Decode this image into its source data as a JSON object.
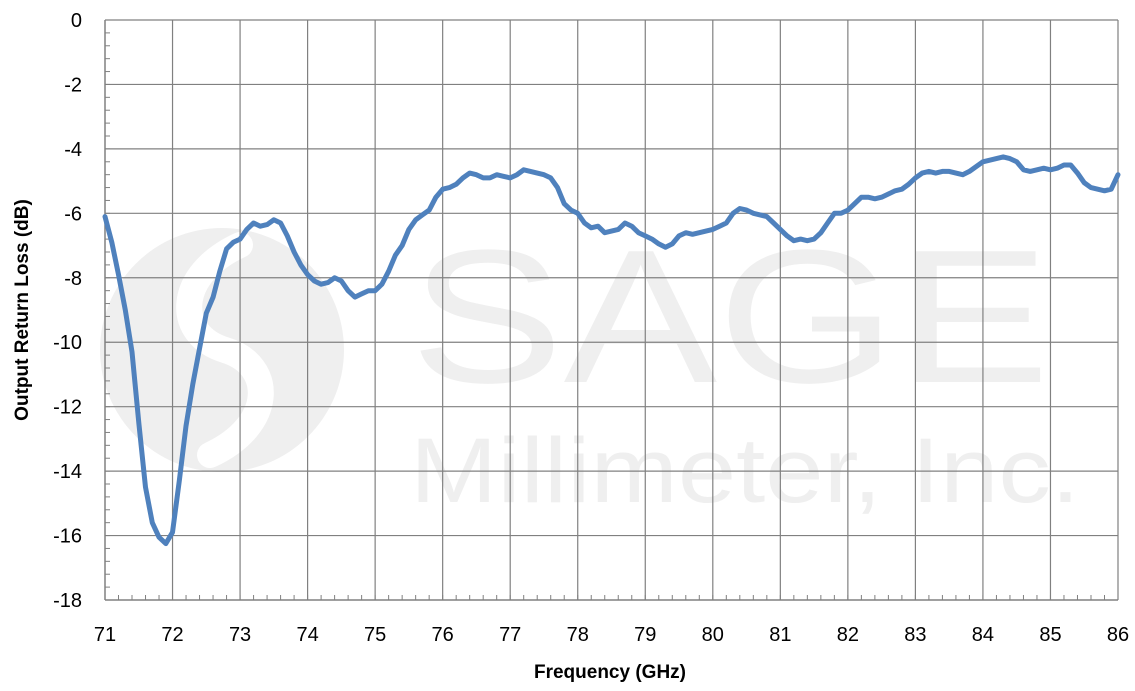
{
  "chart_data": {
    "type": "line",
    "title": "",
    "xlabel": "Frequency (GHz)",
    "ylabel": "Output Return Loss (dB)",
    "xlim": [
      71,
      86
    ],
    "ylim": [
      -18,
      0
    ],
    "x_ticks": [
      71,
      72,
      73,
      74,
      75,
      76,
      77,
      78,
      79,
      80,
      81,
      82,
      83,
      84,
      85,
      86
    ],
    "y_ticks": [
      0,
      -2,
      -4,
      -6,
      -8,
      -10,
      -12,
      -14,
      -16,
      -18
    ],
    "x_tick_labels": [
      "71",
      "72",
      "73",
      "74",
      "75",
      "76",
      "77",
      "78",
      "79",
      "80",
      "81",
      "82",
      "83",
      "84",
      "85",
      "86"
    ],
    "y_tick_labels": [
      "0",
      "-2",
      "-4",
      "-6",
      "-8",
      "-10",
      "-12",
      "-14",
      "-16",
      "-18"
    ],
    "grid": true,
    "legend": "none",
    "series_color": "#4f81bd",
    "grid_color": "#808080",
    "watermark": {
      "brand": "SAGE",
      "tagline": "Millimeter, Inc.",
      "color": "#efefef"
    },
    "series": [
      {
        "x": [
          71.0,
          71.1,
          71.2,
          71.3,
          71.4,
          71.5,
          71.6,
          71.7,
          71.8,
          71.9,
          72.0,
          72.1,
          72.2,
          72.3,
          72.4,
          72.5,
          72.6,
          72.7,
          72.8,
          72.9,
          73.0,
          73.1,
          73.2,
          73.3,
          73.4,
          73.5,
          73.6,
          73.7,
          73.8,
          73.9,
          74.0,
          74.1,
          74.2,
          74.3,
          74.4,
          74.5,
          74.6,
          74.7,
          74.8,
          74.9,
          75.0,
          75.1,
          75.2,
          75.3,
          75.4,
          75.5,
          75.6,
          75.7,
          75.8,
          75.9,
          76.0,
          76.1,
          76.2,
          76.3,
          76.4,
          76.5,
          76.6,
          76.7,
          76.8,
          76.9,
          77.0,
          77.1,
          77.2,
          77.3,
          77.4,
          77.5,
          77.6,
          77.7,
          77.8,
          77.9,
          78.0,
          78.1,
          78.2,
          78.3,
          78.4,
          78.5,
          78.6,
          78.7,
          78.8,
          78.9,
          79.0,
          79.1,
          79.2,
          79.3,
          79.4,
          79.5,
          79.6,
          79.7,
          79.8,
          79.9,
          80.0,
          80.1,
          80.2,
          80.3,
          80.4,
          80.5,
          80.6,
          80.7,
          80.8,
          80.9,
          81.0,
          81.1,
          81.2,
          81.3,
          81.4,
          81.5,
          81.6,
          81.7,
          81.8,
          81.9,
          82.0,
          82.1,
          82.2,
          82.3,
          82.4,
          82.5,
          82.6,
          82.7,
          82.8,
          82.9,
          83.0,
          83.1,
          83.2,
          83.3,
          83.4,
          83.5,
          83.6,
          83.7,
          83.8,
          83.9,
          84.0,
          84.1,
          84.2,
          84.3,
          84.4,
          84.5,
          84.6,
          84.7,
          84.8,
          84.9,
          85.0,
          85.1,
          85.2,
          85.3,
          85.4,
          85.5,
          85.6,
          85.7,
          85.8,
          85.9,
          86.0
        ],
        "y": [
          -6.1,
          -6.9,
          -7.9,
          -9.0,
          -10.3,
          -12.5,
          -14.5,
          -15.6,
          -16.05,
          -16.25,
          -15.9,
          -14.3,
          -12.6,
          -11.3,
          -10.2,
          -9.1,
          -8.6,
          -7.8,
          -7.1,
          -6.9,
          -6.8,
          -6.5,
          -6.3,
          -6.4,
          -6.35,
          -6.2,
          -6.3,
          -6.7,
          -7.2,
          -7.6,
          -7.9,
          -8.1,
          -8.2,
          -8.15,
          -8.0,
          -8.1,
          -8.4,
          -8.6,
          -8.5,
          -8.4,
          -8.4,
          -8.2,
          -7.8,
          -7.3,
          -7.0,
          -6.5,
          -6.2,
          -6.05,
          -5.9,
          -5.5,
          -5.25,
          -5.2,
          -5.1,
          -4.9,
          -4.75,
          -4.8,
          -4.9,
          -4.9,
          -4.8,
          -4.85,
          -4.9,
          -4.8,
          -4.65,
          -4.7,
          -4.75,
          -4.8,
          -4.9,
          -5.2,
          -5.7,
          -5.9,
          -6.0,
          -6.3,
          -6.45,
          -6.4,
          -6.6,
          -6.55,
          -6.5,
          -6.3,
          -6.4,
          -6.6,
          -6.7,
          -6.8,
          -6.95,
          -7.05,
          -6.95,
          -6.7,
          -6.6,
          -6.65,
          -6.6,
          -6.55,
          -6.5,
          -6.4,
          -6.3,
          -6.0,
          -5.85,
          -5.9,
          -6.0,
          -6.05,
          -6.1,
          -6.3,
          -6.5,
          -6.7,
          -6.85,
          -6.8,
          -6.85,
          -6.8,
          -6.6,
          -6.3,
          -6.0,
          -6.0,
          -5.9,
          -5.7,
          -5.5,
          -5.5,
          -5.55,
          -5.5,
          -5.4,
          -5.3,
          -5.25,
          -5.1,
          -4.9,
          -4.75,
          -4.7,
          -4.75,
          -4.7,
          -4.7,
          -4.75,
          -4.8,
          -4.7,
          -4.55,
          -4.4,
          -4.35,
          -4.3,
          -4.25,
          -4.3,
          -4.4,
          -4.65,
          -4.7,
          -4.65,
          -4.6,
          -4.65,
          -4.6,
          -4.5,
          -4.5,
          -4.75,
          -5.05,
          -5.2,
          -5.25,
          -5.3,
          -5.25,
          -4.8
        ]
      }
    ]
  }
}
